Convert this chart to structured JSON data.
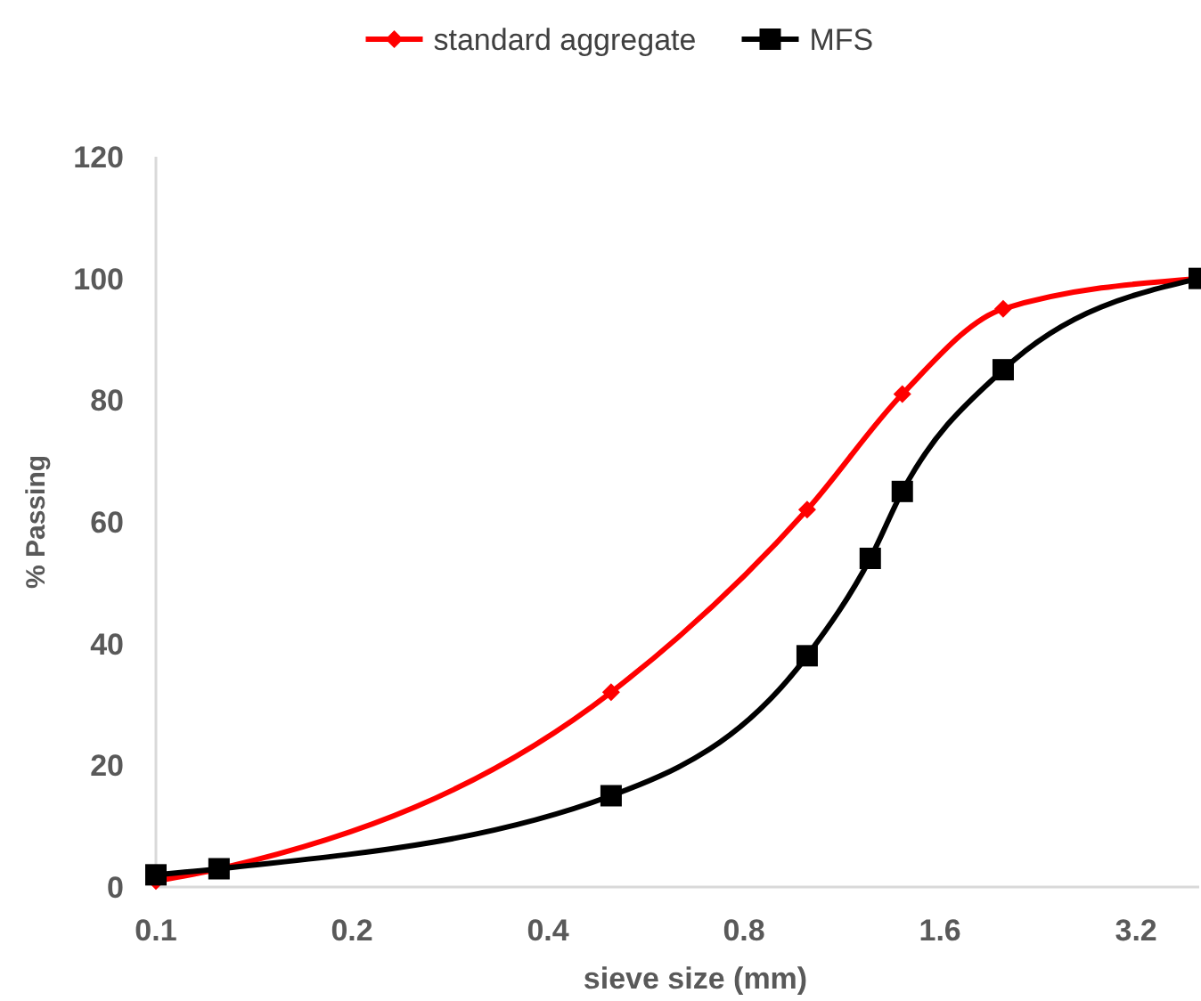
{
  "chart_data": {
    "type": "line",
    "xlabel": "sieve size (mm)",
    "ylabel": "% Passing",
    "log": "x",
    "xlim": [
      0.1,
      4
    ],
    "xticks": [
      0.1,
      0.2,
      0.4,
      0.8,
      1.6,
      3.2
    ],
    "ylim": [
      0,
      120
    ],
    "yticks": [
      0,
      20,
      40,
      60,
      80,
      100,
      120
    ],
    "grid": false,
    "legend": "top",
    "line_style": "solid",
    "series": [
      {
        "name": "standard aggregate",
        "color": "#ff0000",
        "marker": "diamond",
        "x": [
          0.1,
          0.125,
          0.5,
          1,
          1.4,
          2,
          4
        ],
        "values": [
          1,
          3,
          32,
          62,
          81,
          95,
          100
        ]
      },
      {
        "name": "MFS",
        "color": "#000000",
        "marker": "square",
        "x": [
          0.1,
          0.125,
          0.5,
          1,
          1.25,
          1.4,
          2,
          4
        ],
        "values": [
          2,
          3,
          15,
          38,
          54,
          65,
          85,
          100
        ]
      }
    ]
  }
}
